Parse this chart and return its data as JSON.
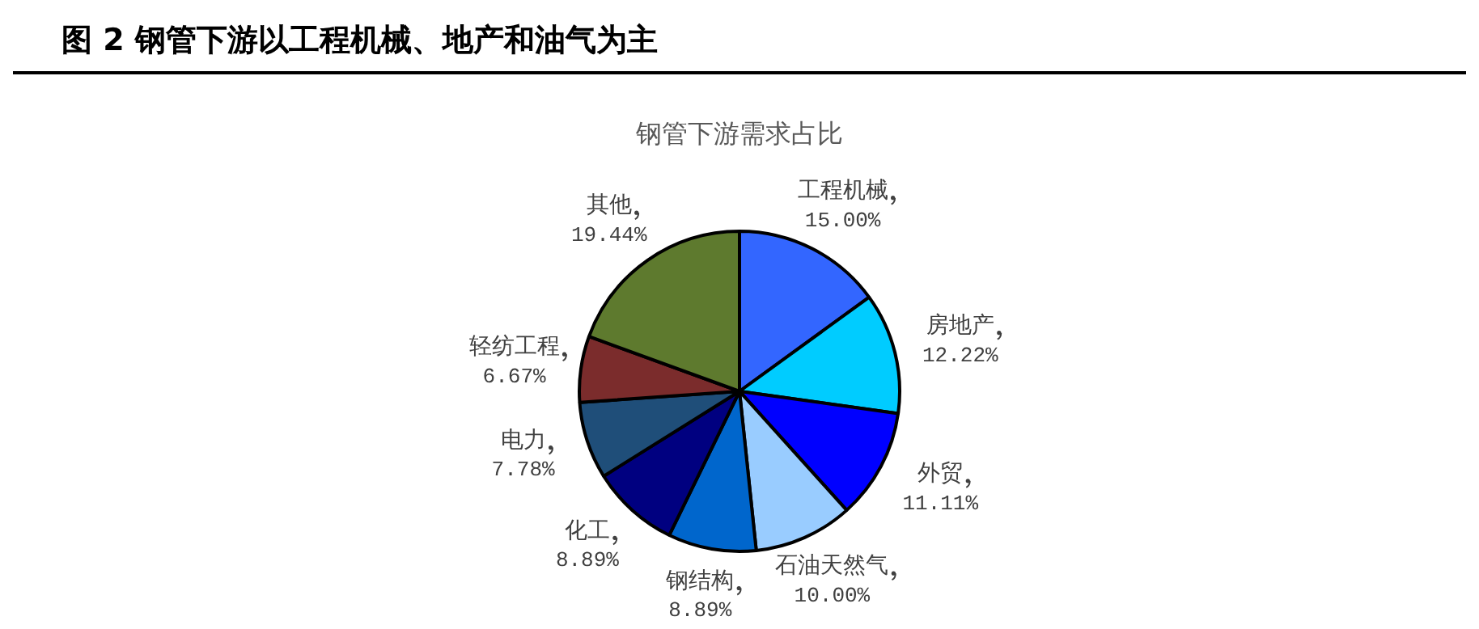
{
  "chart_data": {
    "type": "pie",
    "title": "图 2 钢管下游以工程机械、地产和油气为主",
    "subtitle": "钢管下游需求占比",
    "categories": [
      "工程机械",
      "房地产",
      "外贸",
      "石油天然气",
      "钢结构",
      "化工",
      "电力",
      "轻纺工程",
      "其他"
    ],
    "values": [
      15.0,
      12.22,
      11.11,
      10.0,
      8.89,
      8.89,
      7.78,
      6.67,
      19.44
    ],
    "value_labels": [
      "15.00%",
      "12.22%",
      "11.11%",
      "10.00%",
      "8.89%",
      "8.89%",
      "7.78%",
      "6.67%",
      "19.44%"
    ],
    "colors": [
      "#3366ff",
      "#00ccff",
      "#0000ff",
      "#99ccff",
      "#0066cc",
      "#000080",
      "#1f4e79",
      "#7b2c2c",
      "#5e7a2e"
    ],
    "legend": false
  }
}
